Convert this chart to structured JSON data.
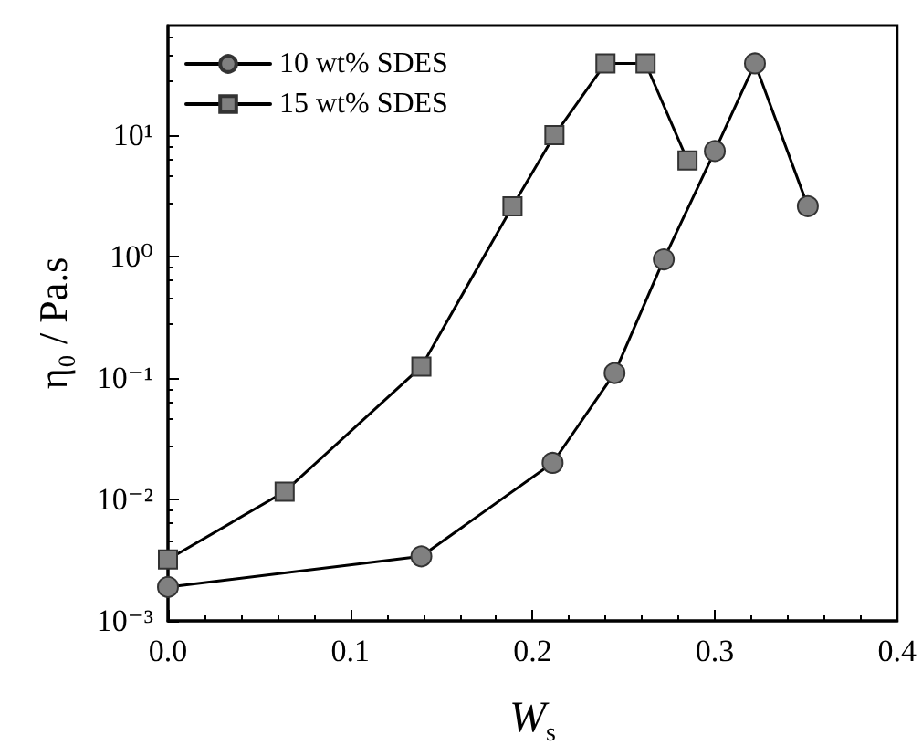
{
  "chart_data": {
    "type": "line",
    "xlabel": "W$_{s}$",
    "ylabel": "η₀ / Pa.s",
    "log": "y",
    "grid": false,
    "legend": "top left",
    "xlim": [
      0,
      0.4
    ],
    "xticks": [
      {
        "value": 0,
        "label": "0.0"
      },
      {
        "value": 0.1,
        "label": "0.1"
      },
      {
        "value": 0.2,
        "label": "0.2"
      },
      {
        "value": 0.3,
        "label": "0.3"
      },
      {
        "value": 0.4,
        "label": "0.4"
      }
    ],
    "ylim": [
      0.001,
      80
    ],
    "yticks": [
      {
        "value": 0.001,
        "label": "10⁻³"
      },
      {
        "value": 0.01,
        "label": "10⁻²"
      },
      {
        "value": 0.1,
        "label": "10⁻¹"
      },
      {
        "value": 1,
        "label": "10⁰"
      },
      {
        "value": 10,
        "label": "10¹"
      }
    ],
    "series": [
      {
        "name": "10 wt% SDES",
        "color": "#808080",
        "marker": "circle",
        "x": [
          0,
          0.139,
          0.211,
          0.245,
          0.272,
          0.3,
          0.322,
          0.351
        ],
        "values": [
          0.0019,
          0.0034,
          0.02,
          0.11,
          0.95,
          7.4,
          39,
          2.6
        ]
      },
      {
        "name": "15 wt% SDES",
        "color": "#808080",
        "marker": "square",
        "x": [
          0,
          0.064,
          0.139,
          0.189,
          0.212,
          0.24,
          0.262,
          0.285
        ],
        "values": [
          0.0032,
          0.0116,
          0.124,
          2.6,
          10,
          39,
          39,
          6.2
        ]
      }
    ]
  }
}
